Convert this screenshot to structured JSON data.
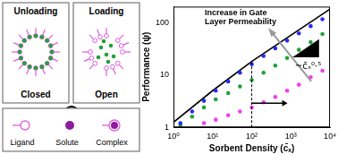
{
  "chart_data": {
    "type": "scatter",
    "x_label": "Sorbent Density (c̄ₓ)",
    "y_label": "Performance (ψ)",
    "log": true,
    "grid": false,
    "xlim": [
      1,
      10000
    ],
    "ylim": [
      1,
      200
    ],
    "xticks": [
      {
        "value": 1,
        "label": "10⁰"
      },
      {
        "value": 10,
        "label": "10¹"
      },
      {
        "value": 100,
        "label": "10²"
      },
      {
        "value": 1000,
        "label": "10³"
      },
      {
        "value": 10000,
        "label": "10⁴"
      }
    ],
    "yticks": [
      1,
      10,
      100
    ],
    "annotation_text": [
      "Increase in Gate",
      "Layer Permeability"
    ],
    "slope_label": "~c̄ₓ⁰·⁵",
    "threshold_x": 100,
    "series": [
      {
        "type": "line",
        "color": "#000000",
        "marker": "none",
        "line_style": "solid",
        "x": [
          1,
          10,
          100,
          1000,
          10000
        ],
        "values": [
          1.25,
          5,
          18,
          57,
          180
        ]
      },
      {
        "color": "#2b2bf0",
        "marker": "circle",
        "x": [
          1.5,
          3,
          6,
          12,
          25,
          50,
          100,
          200,
          400,
          800,
          1600,
          3200,
          6400
        ],
        "values": [
          1.2,
          2,
          3.2,
          5,
          7.5,
          11,
          16,
          23,
          32,
          45,
          62,
          85,
          115
        ]
      },
      {
        "color": "#22a03a",
        "marker": "circle",
        "x": [
          1.5,
          3,
          6,
          12,
          25,
          50,
          100,
          200,
          400,
          800,
          1600,
          3200,
          6400
        ],
        "values": [
          1.1,
          1.6,
          2.4,
          3.4,
          4.5,
          6,
          8,
          11,
          15,
          21,
          30,
          42,
          60
        ]
      },
      {
        "color": "#f03cf0",
        "marker": "circle",
        "x": [
          6,
          12,
          25,
          50,
          100,
          200,
          400,
          800,
          1600,
          3200,
          6400
        ],
        "values": [
          1.2,
          1.4,
          1.7,
          2,
          2.4,
          3,
          3.8,
          5,
          6.5,
          9,
          12
        ]
      }
    ]
  },
  "diagram": {
    "panels": [
      {
        "title": "Unloading",
        "state": "Closed"
      },
      {
        "title": "Loading",
        "state": "Open"
      }
    ],
    "legend": [
      {
        "label": "Ligand"
      },
      {
        "label": "Solute"
      },
      {
        "label": "Complex"
      }
    ]
  }
}
